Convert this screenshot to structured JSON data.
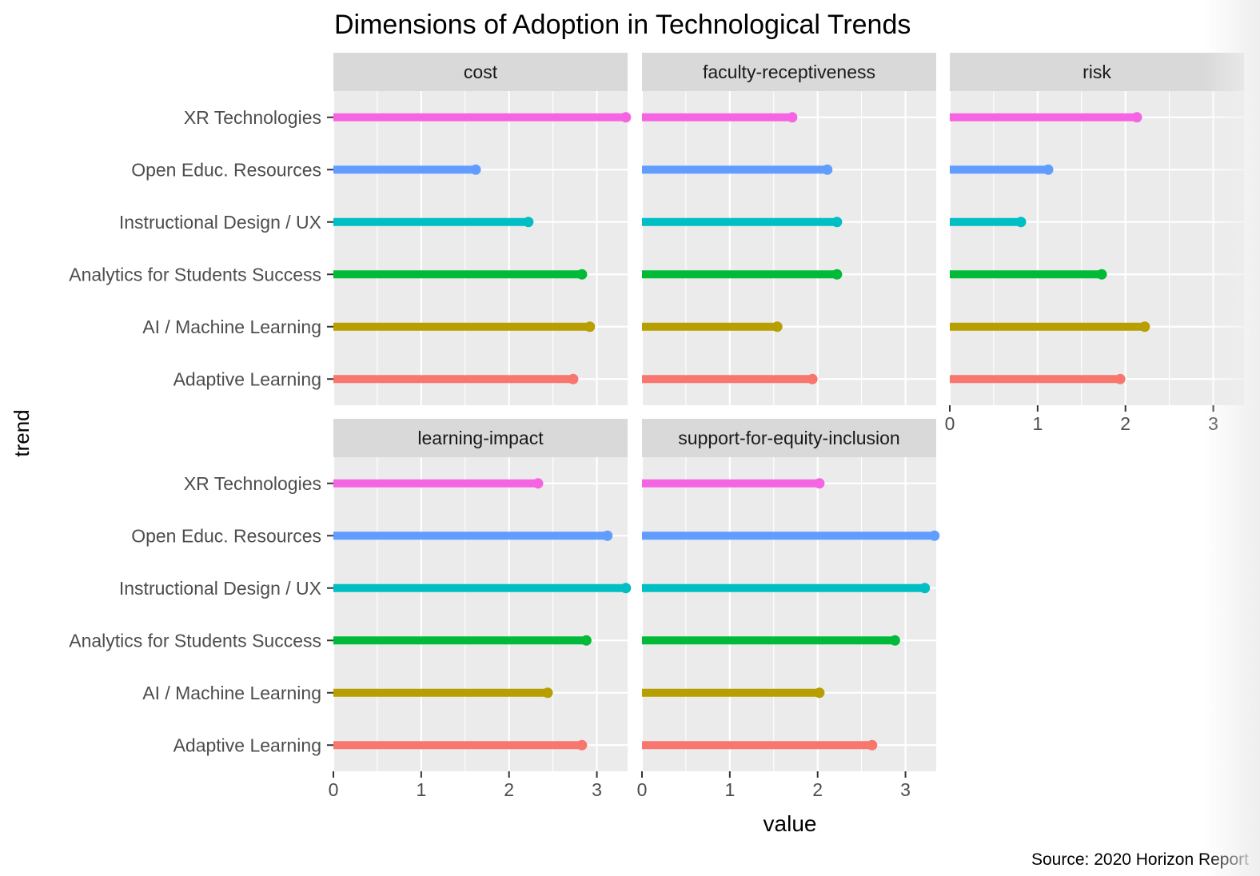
{
  "chart_data": {
    "type": "bar",
    "title": "Dimensions of Adoption in Technological Trends",
    "xlabel": "value",
    "ylabel": "trend",
    "caption": "Source: 2020 Horizon Report",
    "xlim": [
      0,
      3.35
    ],
    "x_ticks": [
      0,
      1,
      2,
      3
    ],
    "grid": true,
    "legend": "none",
    "categories": [
      "Adaptive Learning",
      "AI / Machine Learning",
      "Analytics for Students Success",
      "Instructional Design / UX",
      "Open Educ. Resources",
      "XR Technologies"
    ],
    "category_colors": [
      "#F8766D",
      "#B79F00",
      "#00BA38",
      "#00BFC4",
      "#619CFF",
      "#F564E3"
    ],
    "panels": [
      {
        "name": "cost",
        "values": [
          2.73,
          2.92,
          2.83,
          2.22,
          1.62,
          3.33
        ]
      },
      {
        "name": "faculty-receptiveness",
        "values": [
          1.94,
          1.54,
          2.22,
          2.22,
          2.11,
          1.71
        ]
      },
      {
        "name": "risk",
        "values": [
          1.94,
          2.22,
          1.73,
          0.81,
          1.12,
          2.13
        ]
      },
      {
        "name": "learning-impact",
        "values": [
          2.83,
          2.44,
          2.88,
          3.33,
          3.12,
          2.33
        ]
      },
      {
        "name": "support-for-equity-inclusion",
        "values": [
          2.62,
          2.02,
          2.88,
          3.22,
          3.33,
          2.02
        ]
      }
    ]
  }
}
